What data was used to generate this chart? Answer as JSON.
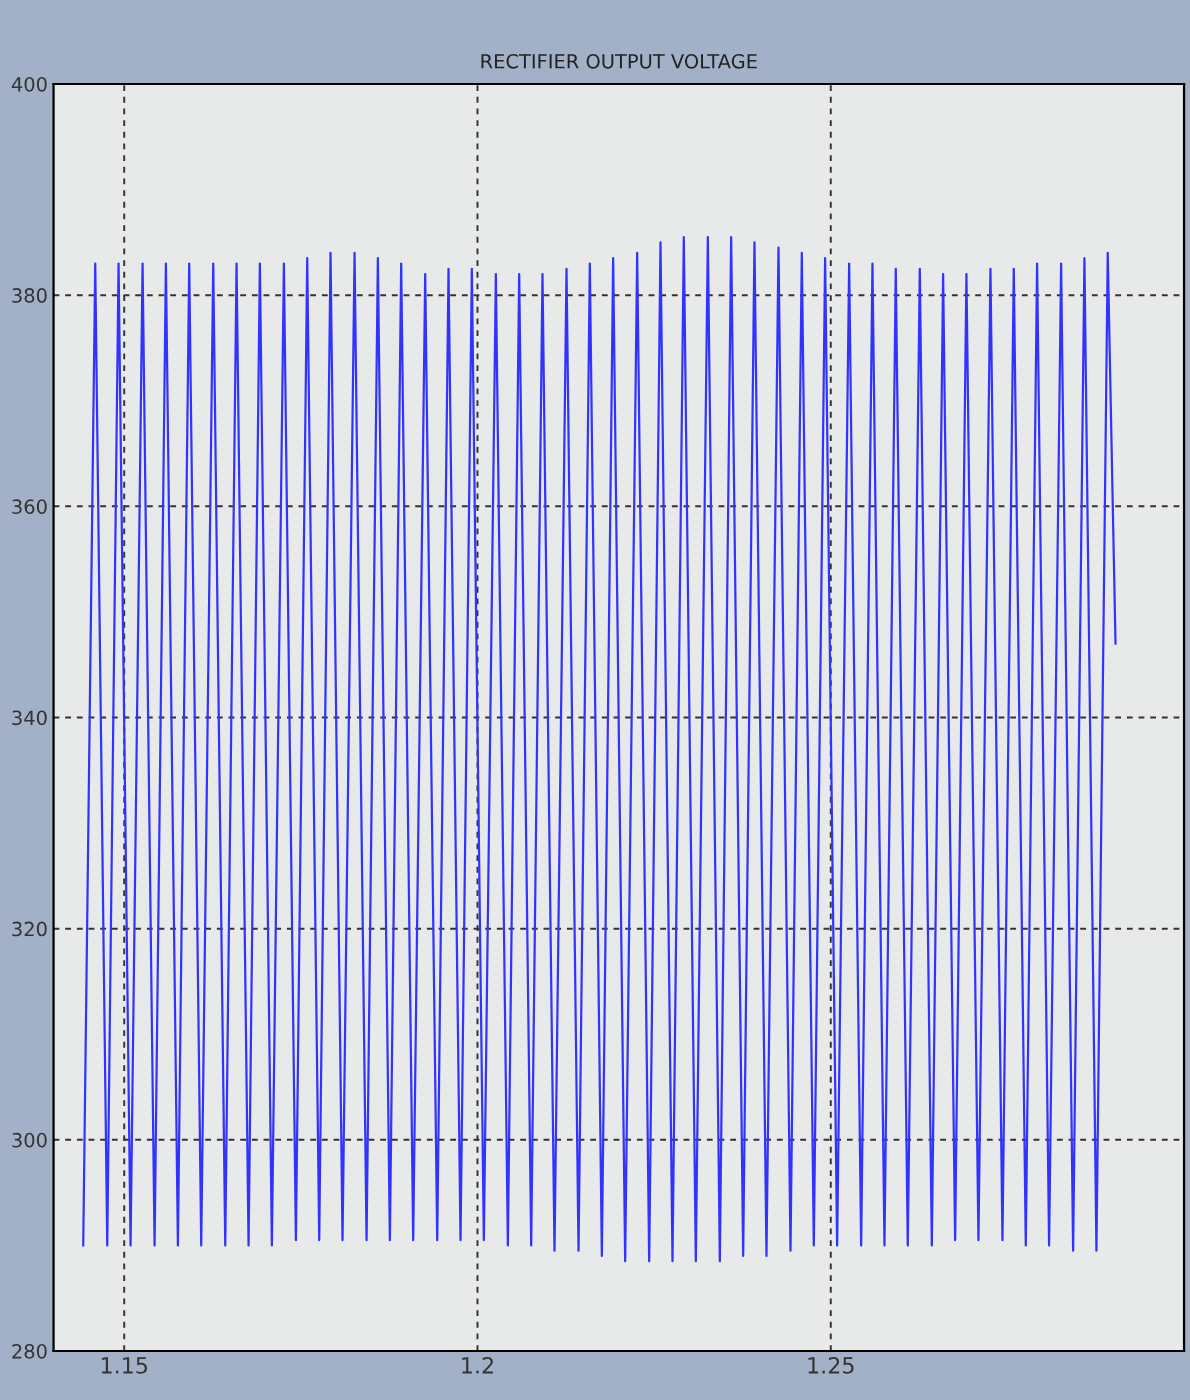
{
  "chart_data": {
    "type": "line",
    "title": "RECTIFIER OUTPUT VOLTAGE",
    "xlim": [
      1.14,
      1.3
    ],
    "xticks": [
      1.15,
      1.2,
      1.25
    ],
    "ylim": [
      280,
      400
    ],
    "yticks": [
      280,
      300,
      320,
      340,
      360,
      380,
      400
    ],
    "grid": true,
    "line_style": "solid",
    "marker": "none",
    "series": [
      {
        "color": "#3333ff",
        "x": [
          1.1442,
          1.1459,
          1.1476,
          1.1492,
          1.1509,
          1.1526,
          1.1543,
          1.1559,
          1.1576,
          1.1592,
          1.1609,
          1.1626,
          1.1643,
          1.1659,
          1.1676,
          1.1692,
          1.1709,
          1.1726,
          1.1743,
          1.1759,
          1.1776,
          1.1792,
          1.1809,
          1.1826,
          1.1843,
          1.1859,
          1.1876,
          1.1892,
          1.1909,
          1.1926,
          1.1943,
          1.1959,
          1.1976,
          1.1992,
          1.2009,
          1.2026,
          1.2043,
          1.2059,
          1.2076,
          1.2092,
          1.2109,
          1.2126,
          1.2143,
          1.2159,
          1.2176,
          1.2192,
          1.2209,
          1.2226,
          1.2243,
          1.2259,
          1.2276,
          1.2292,
          1.2309,
          1.2326,
          1.2343,
          1.2359,
          1.2376,
          1.2392,
          1.2409,
          1.2426,
          1.2443,
          1.2459,
          1.2476,
          1.2492,
          1.2509,
          1.2526,
          1.2543,
          1.2559,
          1.2576,
          1.2592,
          1.2609,
          1.2626,
          1.2643,
          1.2659,
          1.2676,
          1.2692,
          1.2709,
          1.2726,
          1.2743,
          1.2759,
          1.2776,
          1.2792,
          1.2809,
          1.2826,
          1.2843,
          1.2859,
          1.2876,
          1.2892,
          1.2903
        ],
        "values": [
          290,
          383,
          290,
          383,
          290,
          383,
          290,
          383,
          290,
          383,
          290,
          383,
          290,
          383,
          290,
          383,
          290,
          383,
          290.5,
          383.5,
          290.5,
          384,
          290.5,
          384,
          290.5,
          383.5,
          290.5,
          383,
          290.5,
          382,
          290.5,
          382.5,
          290.5,
          382.5,
          290.5,
          382,
          290,
          382,
          290,
          382,
          289.5,
          382.5,
          289.5,
          383,
          289,
          383.5,
          288.5,
          384,
          288.5,
          385,
          288.5,
          385.5,
          288.5,
          385.5,
          288.5,
          385.5,
          289,
          385,
          289,
          384.5,
          289.5,
          384,
          290,
          383.5,
          290,
          383,
          290,
          383,
          290,
          382.5,
          290,
          382.5,
          290,
          382,
          290.5,
          382,
          290.5,
          382.5,
          290.5,
          382.5,
          290,
          383,
          290,
          383,
          289.5,
          383.5,
          289.5,
          384,
          347
        ]
      }
    ]
  }
}
